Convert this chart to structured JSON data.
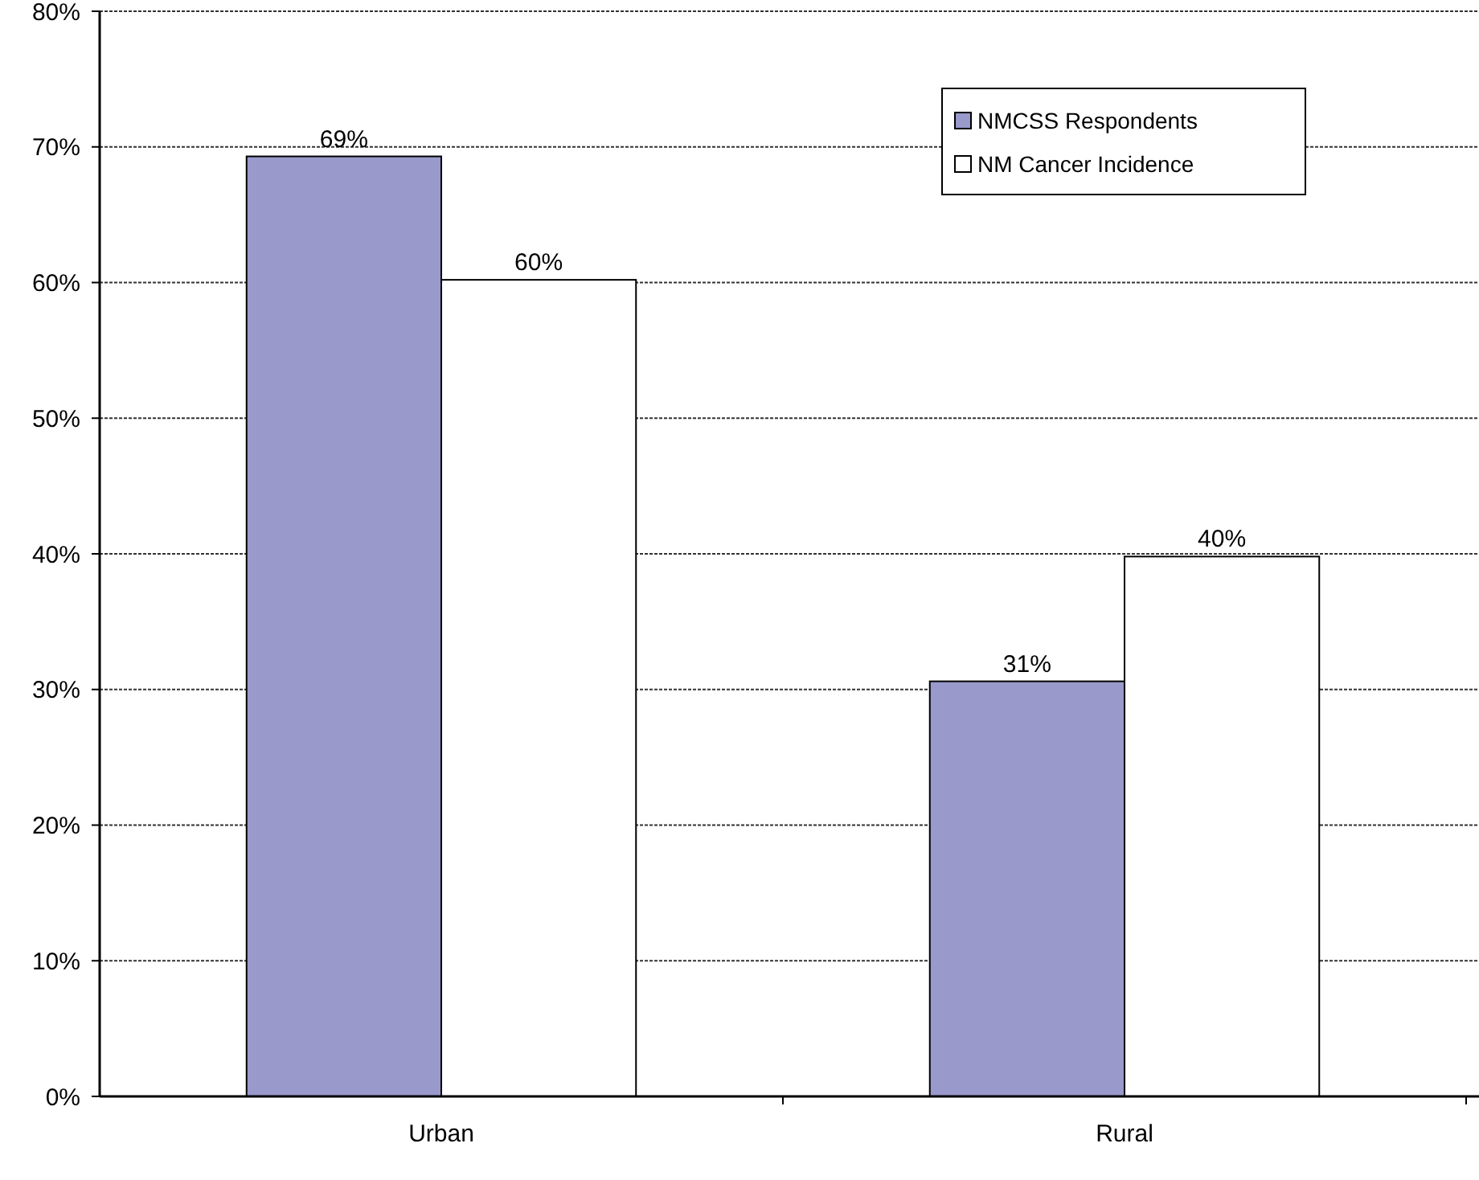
{
  "chart_data": {
    "type": "bar",
    "categories": [
      "Urban",
      "Rural"
    ],
    "series": [
      {
        "name": "NMCSS Respondents",
        "color": "#9999cc",
        "values": [
          69.3,
          30.6
        ],
        "value_labels": [
          "69%",
          "31%"
        ]
      },
      {
        "name": "NM Cancer Incidence",
        "color": "#ffffff",
        "values": [
          60.2,
          39.8
        ],
        "value_labels": [
          "60%",
          "40%"
        ]
      }
    ],
    "ylim": [
      0,
      80
    ],
    "yticks": [
      {
        "value": 0,
        "label": "0%"
      },
      {
        "value": 10,
        "label": "10%"
      },
      {
        "value": 20,
        "label": "20%"
      },
      {
        "value": 30,
        "label": "30%"
      },
      {
        "value": 40,
        "label": "40%"
      },
      {
        "value": 50,
        "label": "50%"
      },
      {
        "value": 60,
        "label": "60%"
      },
      {
        "value": 70,
        "label": "70%"
      },
      {
        "value": 80,
        "label": "80%"
      }
    ],
    "grid": "y",
    "legend": "top right"
  }
}
